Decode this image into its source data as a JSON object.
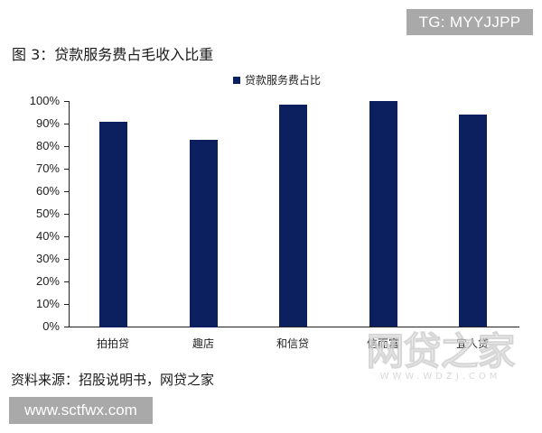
{
  "overlay": {
    "tg_label": "TG: MYYJJPP",
    "site_label": "www.sctfwx.com"
  },
  "figure": {
    "title": "图 3：贷款服务费占毛收入比重",
    "source": "资料来源：招股说明书，网贷之家",
    "watermark_main": "网贷之家",
    "watermark_sub": "WWW.WDZJ.COM"
  },
  "colors": {
    "bar": "#0c1f5e",
    "badge_bg": "#a9a9a9"
  },
  "chart_data": {
    "type": "bar",
    "title": "图 3：贷款服务费占毛收入比重",
    "categories": [
      "拍拍贷",
      "趣店",
      "和信贷",
      "信而富",
      "宜人贷"
    ],
    "series": [
      {
        "name": "贷款服务费占比",
        "values": [
          91,
          83,
          98.5,
          100,
          94
        ]
      }
    ],
    "xlabel": "",
    "ylabel": "",
    "ylim": [
      0,
      100
    ],
    "yticks": [
      "0%",
      "10%",
      "20%",
      "30%",
      "40%",
      "50%",
      "60%",
      "70%",
      "80%",
      "90%",
      "100%"
    ],
    "grid": false,
    "legend_position": "top",
    "unit": "%"
  }
}
